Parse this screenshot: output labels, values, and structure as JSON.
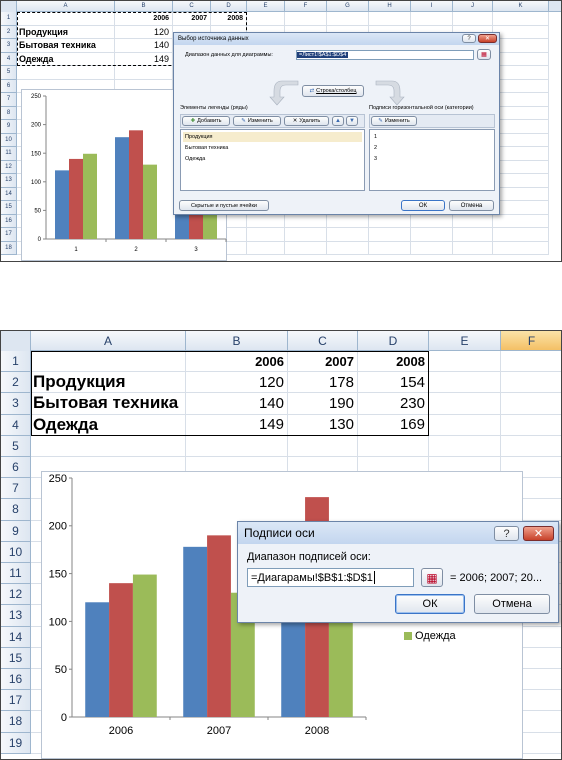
{
  "top": {
    "columns": [
      "A",
      "B",
      "C",
      "D",
      "E",
      "F",
      "G",
      "H",
      "I",
      "J",
      "K"
    ],
    "rows": [
      "1",
      "2",
      "3",
      "4",
      "5",
      "6",
      "7",
      "8",
      "9",
      "10",
      "11",
      "12",
      "13",
      "14",
      "15",
      "16",
      "17",
      "18"
    ],
    "header_years": [
      "2006",
      "2007",
      "2008"
    ],
    "categories": [
      "Продукция",
      "Бытовая техника",
      "Одежда"
    ],
    "col_b_values": [
      "120",
      "140",
      "149"
    ],
    "chart": {
      "y_ticks": [
        "250",
        "200",
        "150",
        "100",
        "50",
        "0"
      ],
      "x_ticks": [
        "1",
        "2",
        "3"
      ]
    },
    "dialog": {
      "title": "Выбор источника данных",
      "range_label": "Диапазон данных для диаграммы:",
      "range_value": "=Лист1!$A$1:$D$4",
      "switch_button": "Строка/столбец",
      "legend_label": "Элементы легенды (ряды)",
      "add_button": "Добавить",
      "edit_button": "Изменить",
      "delete_button": "Удалить",
      "axis_label": "Подписи горизонтальной оси (категории)",
      "axis_edit_button": "Изменить",
      "series_items": [
        "Продукция",
        "Бытовая техника",
        "Одежда"
      ],
      "axis_items": [
        "1",
        "2",
        "3"
      ],
      "hidden_cells_button": "Скрытые и пустые ячейки",
      "ok_button": "ОК",
      "cancel_button": "Отмена",
      "help_glyph": "?",
      "close_glyph": "✕"
    }
  },
  "bottom": {
    "columns": [
      "A",
      "B",
      "C",
      "D",
      "E",
      "F"
    ],
    "rows": [
      "1",
      "2",
      "3",
      "4",
      "5",
      "6",
      "7",
      "8",
      "9",
      "10",
      "11",
      "12",
      "13",
      "14",
      "15",
      "16",
      "17",
      "18",
      "19"
    ],
    "header_years": [
      "2006",
      "2007",
      "2008"
    ],
    "table": [
      {
        "label": "Продукция",
        "values": [
          "120",
          "178",
          "154"
        ]
      },
      {
        "label": "Бытовая техника",
        "values": [
          "140",
          "190",
          "230"
        ]
      },
      {
        "label": "Одежда",
        "values": [
          "149",
          "130",
          "169"
        ]
      }
    ],
    "chart": {
      "y_ticks": [
        "250",
        "200",
        "150",
        "100",
        "50",
        "0"
      ],
      "x_ticks": [
        "2006",
        "2007",
        "2008"
      ],
      "legend_visible": "Одежда"
    },
    "dialog": {
      "title": "Подписи оси",
      "range_label": "Диапазон подписей оси:",
      "range_value": "=Диагарамы!$B$1:$D$1",
      "preview": "= 2006; 2007; 20...",
      "ok_button": "ОК",
      "cancel_button": "Отмена",
      "help_glyph": "?",
      "close_glyph": "✕"
    }
  },
  "chart_data": [
    {
      "type": "bar",
      "categories": [
        "1",
        "2",
        "3"
      ],
      "series": [
        {
          "name": "Продукция",
          "values": [
            120,
            178,
            154
          ]
        },
        {
          "name": "Бытовая техника",
          "values": [
            140,
            190,
            230
          ]
        },
        {
          "name": "Одежда",
          "values": [
            149,
            130,
            169
          ]
        }
      ],
      "ylim": [
        0,
        250
      ],
      "colors": [
        "#4f81bd",
        "#c0504d",
        "#9bbb59"
      ],
      "grid": false
    },
    {
      "type": "bar",
      "categories": [
        "2006",
        "2007",
        "2008"
      ],
      "series": [
        {
          "name": "Продукция",
          "values": [
            120,
            178,
            154
          ]
        },
        {
          "name": "Бытовая техника",
          "values": [
            140,
            190,
            230
          ]
        },
        {
          "name": "Одежда",
          "values": [
            149,
            130,
            169
          ]
        }
      ],
      "ylim": [
        0,
        250
      ],
      "colors": [
        "#4f81bd",
        "#c0504d",
        "#9bbb59"
      ],
      "grid": false
    }
  ]
}
